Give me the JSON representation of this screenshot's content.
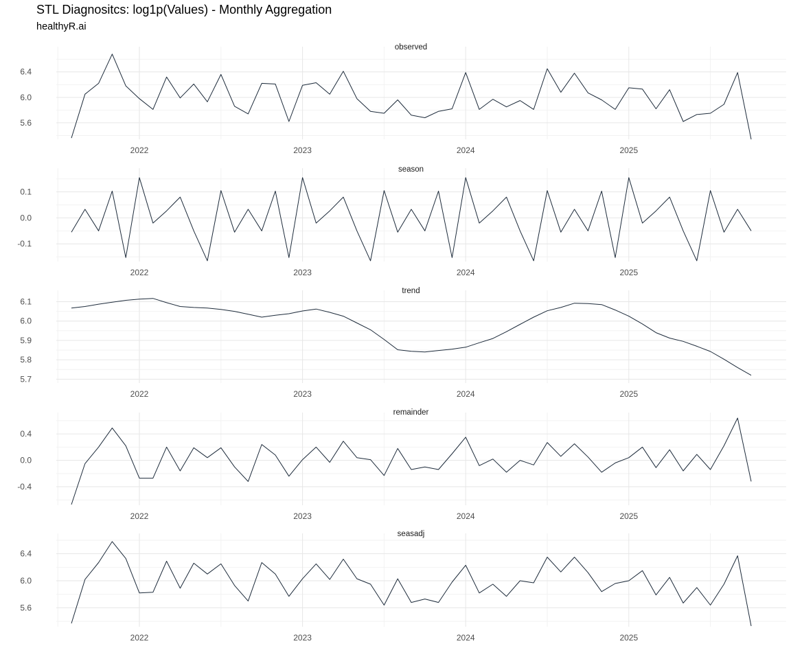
{
  "title": "STL Diagnositcs: log1p(Values) - Monthly Aggregation",
  "subtitle": "healthyR.ai",
  "colors": {
    "line": "#1c2a3a",
    "grid_major": "#e6e6e6",
    "grid_minor": "#f2f2f2",
    "text": "#4d4d4d",
    "strip": "#1a1a1a"
  },
  "chart_data": {
    "type": "line",
    "grid": true,
    "x_unit": "month",
    "x": [
      "2021-08",
      "2021-09",
      "2021-10",
      "2021-11",
      "2021-12",
      "2022-01",
      "2022-02",
      "2022-03",
      "2022-04",
      "2022-05",
      "2022-06",
      "2022-07",
      "2022-08",
      "2022-09",
      "2022-10",
      "2022-11",
      "2022-12",
      "2023-01",
      "2023-02",
      "2023-03",
      "2023-04",
      "2023-05",
      "2023-06",
      "2023-07",
      "2023-08",
      "2023-09",
      "2023-10",
      "2023-11",
      "2023-12",
      "2024-01",
      "2024-02",
      "2024-03",
      "2024-04",
      "2024-05",
      "2024-06",
      "2024-07",
      "2024-08",
      "2024-09",
      "2024-10",
      "2024-11",
      "2024-12",
      "2025-01",
      "2025-02",
      "2025-03",
      "2025-04",
      "2025-05",
      "2025-06",
      "2025-07",
      "2025-08",
      "2025-09",
      "2025-10"
    ],
    "x_ticks": [
      {
        "label": "2022",
        "date": "2022-01"
      },
      {
        "label": "2023",
        "date": "2023-01"
      },
      {
        "label": "2024",
        "date": "2024-01"
      },
      {
        "label": "2025",
        "date": "2025-01"
      }
    ],
    "panels": [
      {
        "name": "observed",
        "ylim": [
          5.34,
          6.71
        ],
        "y_ticks": [
          5.6,
          6.0,
          6.4
        ],
        "values": [
          5.36,
          6.05,
          6.22,
          6.68,
          6.18,
          5.98,
          5.81,
          6.32,
          5.99,
          6.21,
          5.93,
          6.36,
          5.86,
          5.74,
          6.22,
          6.21,
          5.62,
          6.19,
          6.23,
          6.05,
          6.41,
          5.98,
          5.78,
          5.75,
          5.96,
          5.72,
          5.68,
          5.78,
          5.82,
          6.39,
          5.81,
          5.97,
          5.85,
          5.95,
          5.81,
          6.45,
          6.08,
          6.38,
          6.07,
          5.96,
          5.81,
          6.15,
          6.13,
          5.82,
          6.12,
          5.62,
          5.73,
          5.75,
          5.89,
          6.39,
          5.34
        ]
      },
      {
        "name": "season",
        "ylim": [
          -0.168,
          0.17
        ],
        "y_ticks": [
          -0.1,
          0.0,
          0.1
        ],
        "values": [
          -0.055,
          0.033,
          -0.05,
          0.103,
          -0.153,
          0.155,
          -0.02,
          0.027,
          0.08,
          -0.05,
          -0.165,
          0.105,
          -0.055,
          0.033,
          -0.05,
          0.103,
          -0.153,
          0.155,
          -0.02,
          0.027,
          0.08,
          -0.05,
          -0.165,
          0.105,
          -0.055,
          0.033,
          -0.05,
          0.103,
          -0.153,
          0.155,
          -0.02,
          0.027,
          0.08,
          -0.05,
          -0.165,
          0.105,
          -0.055,
          0.033,
          -0.05,
          0.103,
          -0.153,
          0.155,
          -0.02,
          0.027,
          0.08,
          -0.05,
          -0.165,
          0.105,
          -0.055,
          0.033,
          -0.05
        ]
      },
      {
        "name": "trend",
        "ylim": [
          5.68,
          6.13
        ],
        "y_ticks": [
          5.7,
          5.8,
          5.9,
          6.0,
          6.1
        ],
        "values": [
          6.067,
          6.075,
          6.087,
          6.097,
          6.107,
          6.113,
          6.117,
          6.095,
          6.075,
          6.07,
          6.067,
          6.06,
          6.05,
          6.035,
          6.02,
          6.03,
          6.038,
          6.052,
          6.062,
          6.045,
          6.025,
          5.99,
          5.955,
          5.905,
          5.852,
          5.844,
          5.84,
          5.848,
          5.855,
          5.865,
          5.888,
          5.91,
          5.945,
          5.983,
          6.02,
          6.053,
          6.07,
          6.092,
          6.09,
          6.085,
          6.057,
          6.025,
          5.985,
          5.94,
          5.912,
          5.895,
          5.87,
          5.843,
          5.803,
          5.76,
          5.72
        ]
      },
      {
        "name": "remainder",
        "ylim": [
          -0.68,
          0.64
        ],
        "y_ticks": [
          -0.4,
          0.0,
          0.4
        ],
        "values": [
          -0.67,
          -0.05,
          0.2,
          0.49,
          0.22,
          -0.27,
          -0.27,
          0.2,
          -0.16,
          0.19,
          0.04,
          0.19,
          -0.1,
          -0.32,
          0.24,
          0.08,
          -0.24,
          0.01,
          0.2,
          -0.03,
          0.29,
          0.04,
          0.01,
          -0.23,
          0.18,
          -0.14,
          -0.1,
          -0.14,
          0.1,
          0.35,
          -0.08,
          0.02,
          -0.18,
          0.0,
          -0.07,
          0.27,
          0.06,
          0.25,
          0.05,
          -0.18,
          -0.04,
          0.04,
          0.2,
          -0.11,
          0.16,
          -0.16,
          0.09,
          -0.14,
          0.22,
          0.64,
          -0.32
        ]
      },
      {
        "name": "seasadj",
        "ylim": [
          5.32,
          6.62
        ],
        "y_ticks": [
          5.6,
          6.0,
          6.4
        ],
        "values": [
          5.37,
          6.02,
          6.27,
          6.58,
          6.33,
          5.82,
          5.83,
          6.29,
          5.89,
          6.26,
          6.1,
          6.25,
          5.93,
          5.7,
          6.27,
          6.1,
          5.77,
          6.03,
          6.25,
          6.02,
          6.32,
          6.03,
          5.95,
          5.64,
          6.03,
          5.68,
          5.73,
          5.68,
          5.98,
          6.23,
          5.82,
          5.95,
          5.77,
          6.0,
          5.97,
          6.35,
          6.13,
          6.35,
          6.12,
          5.84,
          5.96,
          6.0,
          6.15,
          5.79,
          6.05,
          5.67,
          5.9,
          5.64,
          5.95,
          6.37,
          5.33
        ]
      }
    ]
  }
}
